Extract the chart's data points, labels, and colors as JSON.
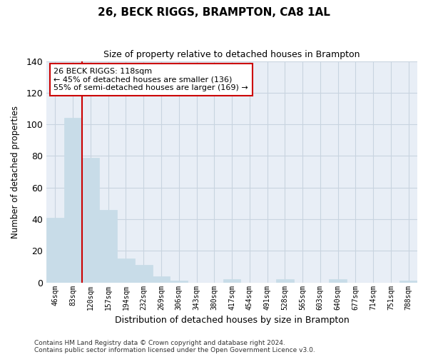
{
  "title": "26, BECK RIGGS, BRAMPTON, CA8 1AL",
  "subtitle": "Size of property relative to detached houses in Brampton",
  "xlabel": "Distribution of detached houses by size in Brampton",
  "ylabel": "Number of detached properties",
  "bar_labels": [
    "46sqm",
    "83sqm",
    "120sqm",
    "157sqm",
    "194sqm",
    "232sqm",
    "269sqm",
    "306sqm",
    "343sqm",
    "380sqm",
    "417sqm",
    "454sqm",
    "491sqm",
    "528sqm",
    "565sqm",
    "603sqm",
    "640sqm",
    "677sqm",
    "714sqm",
    "751sqm",
    "788sqm"
  ],
  "bar_values": [
    41,
    104,
    79,
    46,
    15,
    11,
    4,
    1,
    0,
    0,
    2,
    0,
    0,
    2,
    0,
    0,
    2,
    0,
    0,
    0,
    1
  ],
  "bar_color": "#c8dce8",
  "bar_edgecolor": "#c8dce8",
  "vline_color": "#cc0000",
  "ylim": [
    0,
    140
  ],
  "yticks": [
    0,
    20,
    40,
    60,
    80,
    100,
    120,
    140
  ],
  "annotation_title": "26 BECK RIGGS: 118sqm",
  "annotation_line1": "← 45% of detached houses are smaller (136)",
  "annotation_line2": "55% of semi-detached houses are larger (169) →",
  "annotation_box_facecolor": "#ffffff",
  "annotation_box_edgecolor": "#cc0000",
  "footer_line1": "Contains HM Land Registry data © Crown copyright and database right 2024.",
  "footer_line2": "Contains public sector information licensed under the Open Government Licence v3.0.",
  "background_color": "#ffffff",
  "plot_facecolor": "#e8eef6",
  "grid_color": "#c8d4e0"
}
